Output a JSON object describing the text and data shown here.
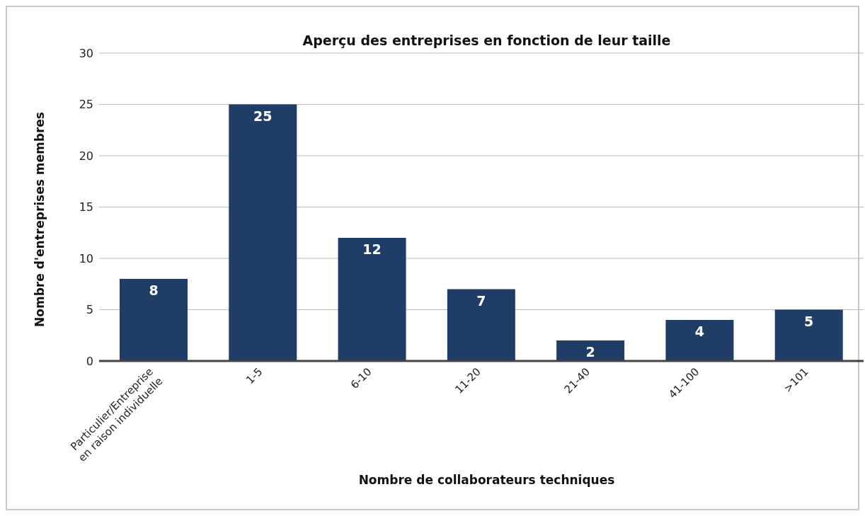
{
  "chart_data": {
    "type": "bar",
    "title": "Aperçu des entreprises en fonction de leur taille",
    "xlabel": "Nombre de collaborateurs techniques",
    "ylabel": "Nombre d'entreprises membres",
    "categories": [
      "Particulier/Entreprise\nen raison individuelle",
      "1-5",
      "6-10",
      "11-20",
      "21-40",
      "41-100",
      ">101"
    ],
    "values": [
      8,
      25,
      12,
      7,
      2,
      4,
      5
    ],
    "color": "#1f3d66",
    "ylim": [
      0,
      30
    ],
    "yticks": [
      0,
      5,
      10,
      15,
      20,
      25,
      30
    ],
    "grid": "y",
    "data_labels": true,
    "legend": false
  }
}
